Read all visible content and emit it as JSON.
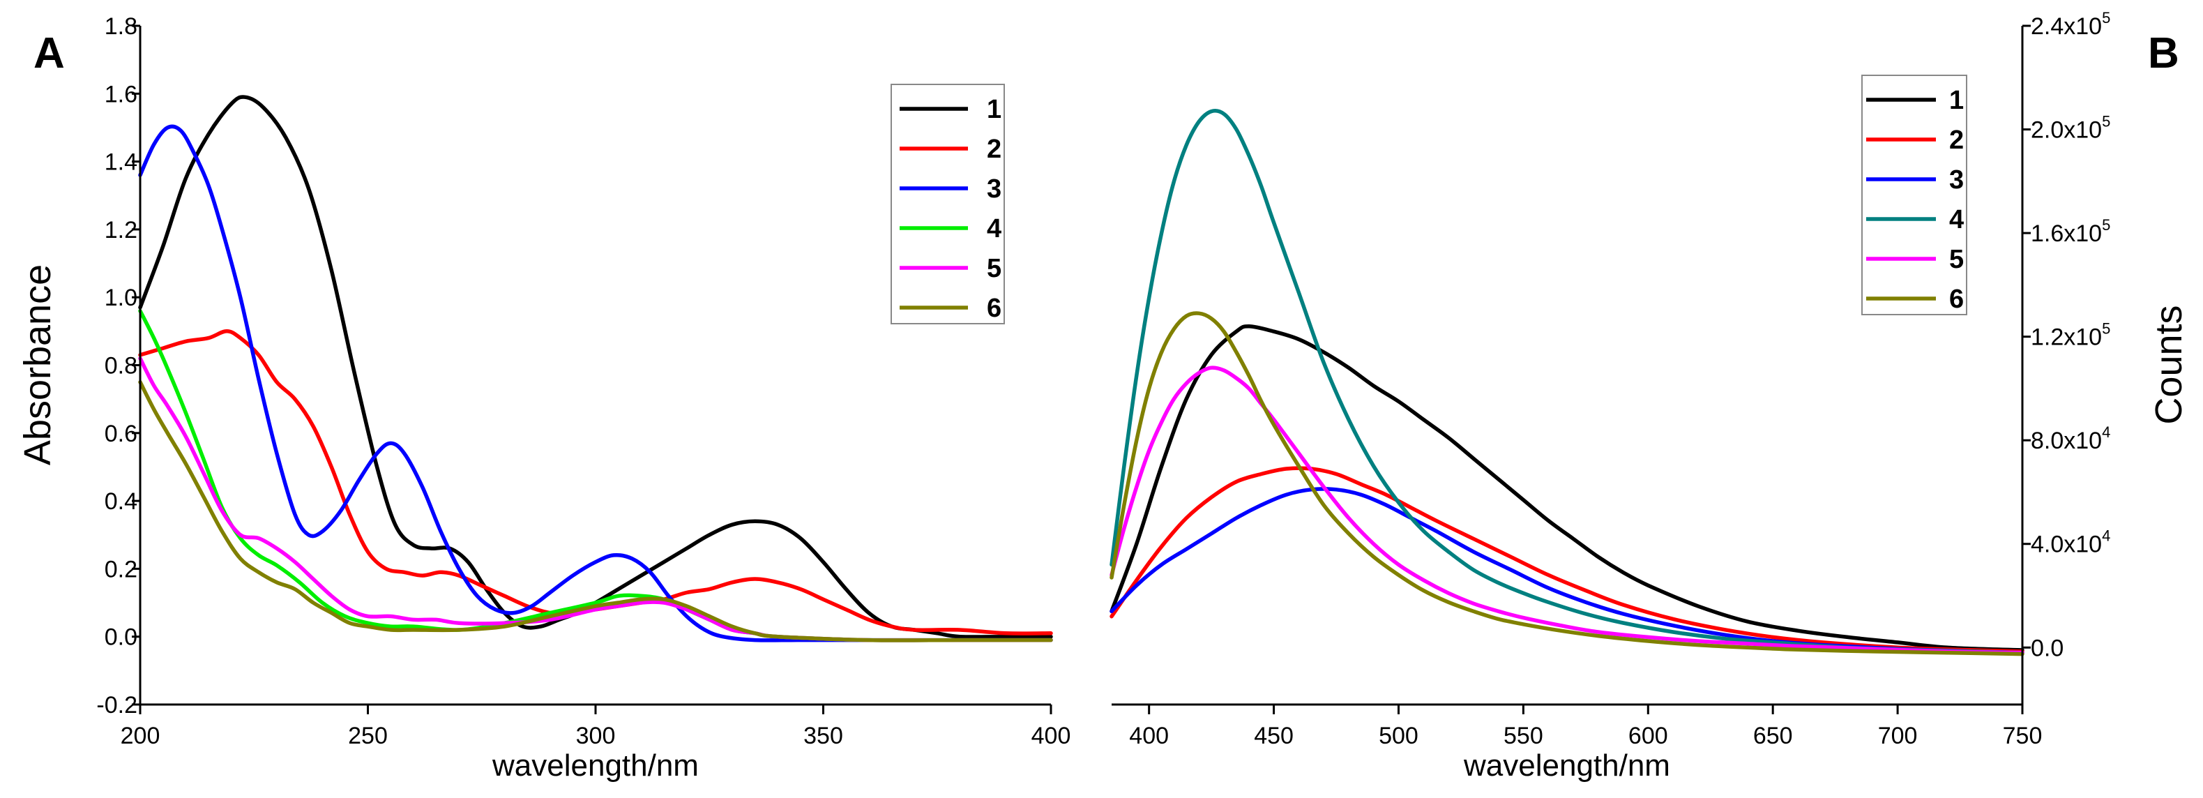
{
  "panels": [
    {
      "letter": "A"
    },
    {
      "letter": "B"
    }
  ],
  "chart_data": [
    {
      "type": "line",
      "panel": "A",
      "xlabel": "wavelength/nm",
      "ylabel": "Absorbance",
      "xlim": [
        200,
        400
      ],
      "ylim": [
        -0.2,
        1.8
      ],
      "xticks": [
        200,
        250,
        300,
        350,
        400
      ],
      "xtick_labels": [
        "200",
        "250",
        "300",
        "350",
        "400"
      ],
      "yticks": [
        -0.2,
        0.0,
        0.2,
        0.4,
        0.6,
        0.8,
        1.0,
        1.2,
        1.4,
        1.6,
        1.8
      ],
      "ytick_labels": [
        "-0.2",
        "0.0",
        "0.2",
        "0.4",
        "0.6",
        "0.8",
        "1.0",
        "1.2",
        "1.4",
        "1.6",
        "1.8"
      ],
      "legend_position": "top-right",
      "series": [
        {
          "name": "1",
          "color": "#000000",
          "x": [
            200,
            205,
            210,
            215,
            220,
            223,
            227,
            232,
            237,
            242,
            247,
            252,
            256,
            260,
            264,
            268,
            272,
            276,
            280,
            284,
            288,
            292,
            296,
            300,
            305,
            310,
            315,
            320,
            325,
            330,
            335,
            340,
            345,
            350,
            355,
            360,
            365,
            370,
            375,
            380,
            390,
            400
          ],
          "y": [
            0.97,
            1.15,
            1.35,
            1.48,
            1.57,
            1.59,
            1.56,
            1.47,
            1.32,
            1.08,
            0.78,
            0.5,
            0.33,
            0.27,
            0.26,
            0.26,
            0.22,
            0.14,
            0.07,
            0.03,
            0.03,
            0.05,
            0.07,
            0.1,
            0.14,
            0.18,
            0.22,
            0.26,
            0.3,
            0.33,
            0.34,
            0.33,
            0.29,
            0.22,
            0.14,
            0.07,
            0.03,
            0.02,
            0.01,
            0.0,
            0.0,
            0.0
          ]
        },
        {
          "name": "2",
          "color": "#ff0000",
          "x": [
            200,
            205,
            210,
            215,
            219,
            222,
            226,
            230,
            234,
            238,
            242,
            246,
            250,
            254,
            258,
            262,
            266,
            270,
            275,
            280,
            285,
            290,
            295,
            300,
            305,
            310,
            315,
            320,
            325,
            330,
            335,
            340,
            345,
            350,
            355,
            360,
            365,
            370,
            380,
            390,
            400
          ],
          "y": [
            0.83,
            0.85,
            0.87,
            0.88,
            0.9,
            0.88,
            0.83,
            0.75,
            0.7,
            0.62,
            0.5,
            0.36,
            0.25,
            0.2,
            0.19,
            0.18,
            0.19,
            0.18,
            0.15,
            0.12,
            0.09,
            0.07,
            0.07,
            0.08,
            0.09,
            0.1,
            0.11,
            0.13,
            0.14,
            0.16,
            0.17,
            0.16,
            0.14,
            0.11,
            0.08,
            0.05,
            0.03,
            0.02,
            0.02,
            0.01,
            0.01
          ]
        },
        {
          "name": "3",
          "color": "#0000ff",
          "x": [
            200,
            203,
            206,
            209,
            212,
            215,
            218,
            222,
            226,
            230,
            234,
            237,
            240,
            244,
            248,
            252,
            255,
            258,
            262,
            266,
            270,
            274,
            278,
            282,
            286,
            290,
            295,
            300,
            304,
            308,
            312,
            316,
            320,
            324,
            328,
            335,
            345,
            360,
            380,
            400
          ],
          "y": [
            1.36,
            1.45,
            1.5,
            1.49,
            1.42,
            1.33,
            1.2,
            1.0,
            0.76,
            0.54,
            0.36,
            0.3,
            0.31,
            0.37,
            0.46,
            0.54,
            0.57,
            0.54,
            0.44,
            0.31,
            0.2,
            0.12,
            0.08,
            0.07,
            0.09,
            0.13,
            0.18,
            0.22,
            0.24,
            0.23,
            0.19,
            0.12,
            0.06,
            0.02,
            0.0,
            -0.01,
            -0.01,
            -0.01,
            -0.01,
            -0.01
          ]
        },
        {
          "name": "4",
          "color": "#00ee00",
          "x": [
            200,
            203,
            206,
            210,
            214,
            218,
            222,
            226,
            230,
            235,
            240,
            245,
            250,
            255,
            260,
            270,
            280,
            290,
            300,
            305,
            310,
            315,
            320,
            325,
            330,
            335,
            340,
            360,
            380,
            400
          ],
          "y": [
            0.96,
            0.88,
            0.79,
            0.66,
            0.52,
            0.38,
            0.29,
            0.24,
            0.21,
            0.16,
            0.1,
            0.06,
            0.04,
            0.03,
            0.03,
            0.02,
            0.04,
            0.07,
            0.1,
            0.12,
            0.12,
            0.11,
            0.08,
            0.05,
            0.02,
            0.01,
            0.0,
            -0.01,
            -0.01,
            -0.01
          ]
        },
        {
          "name": "5",
          "color": "#ff00ff",
          "x": [
            200,
            203,
            206,
            210,
            214,
            218,
            222,
            226,
            230,
            234,
            238,
            242,
            246,
            250,
            255,
            260,
            265,
            270,
            280,
            290,
            300,
            305,
            310,
            315,
            320,
            325,
            330,
            335,
            340,
            360,
            380,
            400
          ],
          "y": [
            0.82,
            0.74,
            0.68,
            0.59,
            0.48,
            0.37,
            0.3,
            0.29,
            0.26,
            0.22,
            0.17,
            0.12,
            0.08,
            0.06,
            0.06,
            0.05,
            0.05,
            0.04,
            0.04,
            0.05,
            0.08,
            0.09,
            0.1,
            0.1,
            0.08,
            0.05,
            0.02,
            0.01,
            0.0,
            -0.01,
            -0.01,
            -0.01
          ]
        },
        {
          "name": "6",
          "color": "#808000",
          "x": [
            200,
            203,
            206,
            210,
            214,
            218,
            222,
            226,
            230,
            234,
            238,
            242,
            246,
            250,
            255,
            260,
            270,
            280,
            290,
            300,
            305,
            310,
            315,
            320,
            325,
            330,
            335,
            340,
            360,
            380,
            400
          ],
          "y": [
            0.75,
            0.67,
            0.6,
            0.51,
            0.41,
            0.31,
            0.23,
            0.19,
            0.16,
            0.14,
            0.1,
            0.07,
            0.04,
            0.03,
            0.02,
            0.02,
            0.02,
            0.03,
            0.06,
            0.09,
            0.1,
            0.11,
            0.11,
            0.09,
            0.06,
            0.03,
            0.01,
            0.0,
            -0.01,
            -0.01,
            -0.01
          ]
        }
      ]
    },
    {
      "type": "line",
      "panel": "B",
      "xlabel": "wavelength/nm",
      "ylabel": "Counts",
      "xlim": [
        385,
        750
      ],
      "ylim": [
        -22000,
        240000
      ],
      "xticks": [
        400,
        450,
        500,
        550,
        600,
        650,
        700,
        750
      ],
      "xtick_labels": [
        "400",
        "450",
        "500",
        "550",
        "600",
        "650",
        "700",
        "750"
      ],
      "yticks": [
        0,
        40000,
        80000,
        120000,
        160000,
        200000,
        240000
      ],
      "ytick_labels": [
        {
          "mantissa": "0.0",
          "exp": ""
        },
        {
          "mantissa": "4.0x10",
          "exp": "4"
        },
        {
          "mantissa": "8.0x10",
          "exp": "4"
        },
        {
          "mantissa": "1.2x10",
          "exp": "5"
        },
        {
          "mantissa": "1.6x10",
          "exp": "5"
        },
        {
          "mantissa": "2.0x10",
          "exp": "5"
        },
        {
          "mantissa": "2.4x10",
          "exp": "5"
        }
      ],
      "legend_position": "top-right",
      "series": [
        {
          "name": "1",
          "color": "#000000",
          "x": [
            385,
            395,
            405,
            415,
            425,
            435,
            440,
            450,
            460,
            470,
            480,
            490,
            500,
            510,
            520,
            530,
            540,
            550,
            560,
            570,
            580,
            590,
            600,
            620,
            640,
            660,
            680,
            700,
            720,
            750
          ],
          "y": [
            14000,
            40000,
            70000,
            96000,
            113000,
            122000,
            124000,
            122000,
            119000,
            114000,
            108000,
            101000,
            95000,
            88000,
            81000,
            73000,
            65000,
            57000,
            49000,
            42000,
            35000,
            29000,
            24000,
            16000,
            10000,
            6500,
            4000,
            2000,
            0,
            -1000
          ]
        },
        {
          "name": "2",
          "color": "#ff0000",
          "x": [
            385,
            395,
            405,
            415,
            425,
            435,
            445,
            455,
            465,
            475,
            485,
            495,
            505,
            515,
            530,
            545,
            560,
            575,
            590,
            610,
            630,
            650,
            670,
            700,
            730,
            750
          ],
          "y": [
            12000,
            26000,
            39000,
            50000,
            58000,
            64000,
            67000,
            69000,
            69000,
            67000,
            63000,
            59000,
            54000,
            49000,
            42000,
            35000,
            28000,
            22000,
            16500,
            11000,
            7000,
            4000,
            2000,
            0,
            -1000,
            -1500
          ]
        },
        {
          "name": "3",
          "color": "#0000ff",
          "x": [
            385,
            395,
            405,
            415,
            425,
            435,
            445,
            455,
            465,
            475,
            485,
            495,
            505,
            515,
            530,
            545,
            560,
            575,
            590,
            610,
            630,
            650,
            670,
            700,
            730,
            750
          ],
          "y": [
            14000,
            24000,
            32000,
            38000,
            44000,
            50000,
            55000,
            59000,
            61000,
            61000,
            59000,
            55000,
            50000,
            45000,
            37000,
            30000,
            23000,
            17500,
            13000,
            8500,
            5000,
            2500,
            1000,
            -500,
            -1500,
            -2000
          ]
        },
        {
          "name": "4",
          "color": "#008080",
          "x": [
            385,
            390,
            395,
            400,
            405,
            410,
            415,
            420,
            425,
            430,
            435,
            440,
            445,
            450,
            460,
            470,
            480,
            490,
            500,
            510,
            520,
            530,
            540,
            550,
            560,
            575,
            590,
            610,
            630,
            650,
            680,
            710,
            750
          ],
          "y": [
            32000,
            70000,
            105000,
            135000,
            160000,
            180000,
            194000,
            203000,
            207000,
            206000,
            200000,
            190000,
            178000,
            164000,
            137000,
            110000,
            88000,
            70000,
            56000,
            45000,
            37000,
            30000,
            25000,
            21000,
            17500,
            13000,
            9500,
            6000,
            3500,
            2000,
            0,
            -1000,
            -2000
          ]
        },
        {
          "name": "5",
          "color": "#ff00ff",
          "x": [
            385,
            390,
            395,
            400,
            405,
            410,
            415,
            420,
            425,
            430,
            435,
            440,
            445,
            450,
            460,
            470,
            480,
            490,
            500,
            510,
            520,
            530,
            540,
            550,
            565,
            580,
            600,
            620,
            640,
            660,
            690,
            720,
            750
          ],
          "y": [
            28000,
            46000,
            62000,
            76000,
            87000,
            96000,
            102000,
            106000,
            108000,
            107000,
            104000,
            100000,
            94000,
            88000,
            75000,
            62000,
            50000,
            40000,
            32000,
            26000,
            21000,
            17000,
            14000,
            11500,
            8500,
            6000,
            4000,
            2500,
            1500,
            500,
            -500,
            -1500,
            -2000
          ]
        },
        {
          "name": "6",
          "color": "#808000",
          "x": [
            385,
            390,
            395,
            400,
            405,
            410,
            415,
            420,
            425,
            430,
            435,
            440,
            445,
            450,
            460,
            470,
            480,
            490,
            500,
            510,
            520,
            530,
            540,
            550,
            565,
            580,
            600,
            620,
            640,
            660,
            690,
            720,
            750
          ],
          "y": [
            27000,
            55000,
            80000,
            100000,
            114000,
            123000,
            128000,
            129000,
            127000,
            122000,
            114000,
            105000,
            95000,
            86000,
            70000,
            55000,
            44000,
            35000,
            28000,
            22000,
            17500,
            14000,
            11000,
            9000,
            6500,
            4500,
            2500,
            1000,
            0,
            -800,
            -1500,
            -2000,
            -2500
          ]
        }
      ]
    }
  ]
}
